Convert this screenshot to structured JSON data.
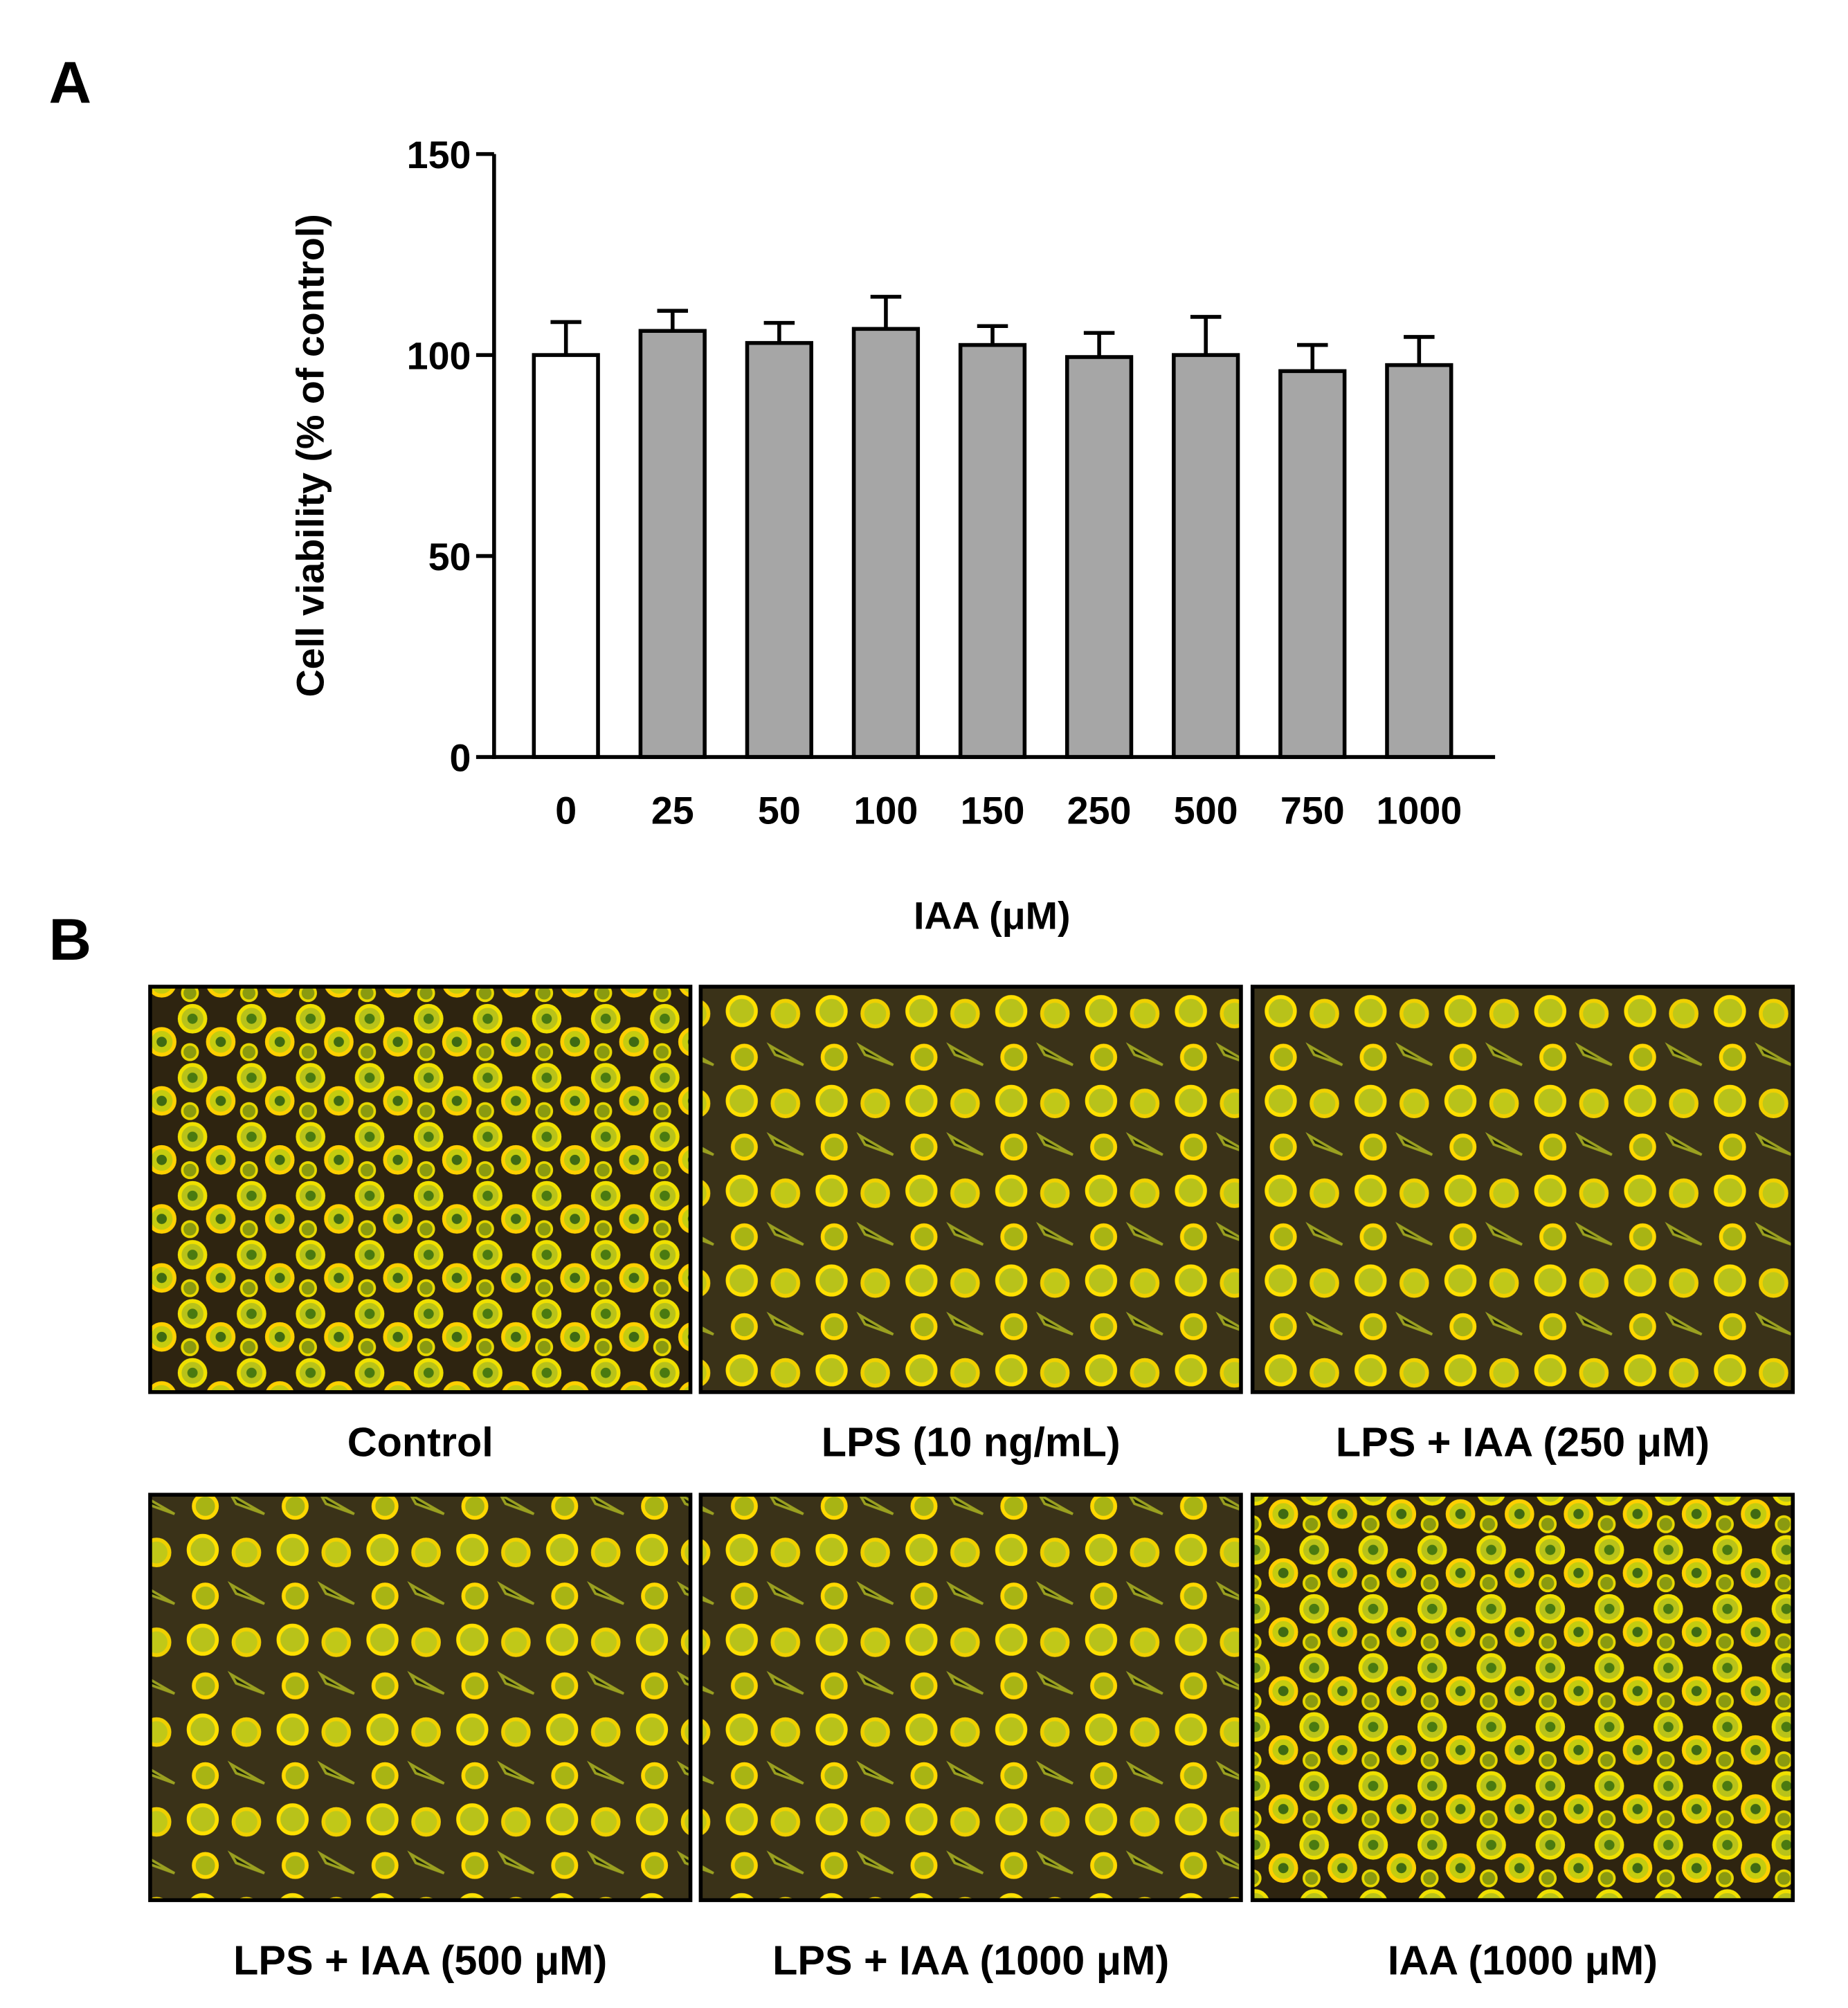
{
  "panel_labels": [
    "A",
    "B"
  ],
  "chart_data": {
    "type": "bar",
    "x_label": "IAA (μM)",
    "y_label": "Cell viability (% of control)",
    "categories": [
      "0",
      "25",
      "50",
      "100",
      "150",
      "250",
      "500",
      "750",
      "1000"
    ],
    "values": [
      100,
      106,
      103,
      106.5,
      102.5,
      99.5,
      100,
      96,
      97.5
    ],
    "errors": [
      8.2,
      5,
      5,
      8,
      4.7,
      6,
      9.5,
      6.5,
      7
    ],
    "colors": [
      "#ffffff",
      "#a6a6a6",
      "#a6a6a6",
      "#a6a6a6",
      "#a6a6a6",
      "#a6a6a6",
      "#a6a6a6",
      "#a6a6a6",
      "#a6a6a6"
    ],
    "ylim": [
      0,
      150
    ],
    "yticks": [
      0,
      50,
      100,
      150
    ]
  },
  "images": [
    {
      "caption": "Control"
    },
    {
      "caption": "LPS (10 ng/mL)"
    },
    {
      "caption": "LPS + IAA (250 μM)"
    },
    {
      "caption": "LPS + IAA (500 μM)"
    },
    {
      "caption": "LPS + IAA (1000 μM)"
    },
    {
      "caption": "IAA (1000 μM)"
    }
  ]
}
